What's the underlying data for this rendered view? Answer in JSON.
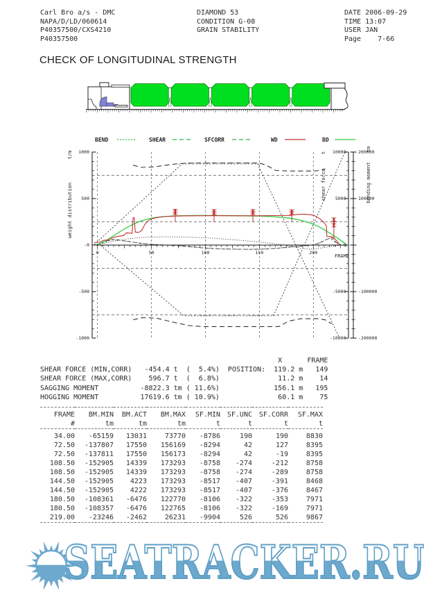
{
  "header": {
    "left": [
      "Carl Bro a/s - DMC",
      "NAPA/D/LD/060614",
      "P40357500/CXS4210",
      "P40357500"
    ],
    "center": [
      "DIAMOND 53",
      "CONDITION G-08",
      "GRAIN STABILITY"
    ],
    "right": [
      "DATE 2006-09-29",
      "TIME 13:07",
      "USER JAN",
      "Page    7-66"
    ]
  },
  "title": "CHECK OF LONGITUDINAL STRENGTH",
  "ship": {
    "hold_count": 5,
    "hold_color": "#00df1f",
    "hold_stroke": "#127a12",
    "hull_stroke": "#222222",
    "accent_color": "#7d84d6"
  },
  "chart": {
    "legend": [
      {
        "label": "BEND",
        "color": "#2eb84d",
        "dash": "2,2"
      },
      {
        "label": "SHEAR",
        "color": "#2eb84d",
        "dash": "6,4"
      },
      {
        "label": "SFCORR",
        "color": "#2eb84d",
        "dash": "6,4"
      },
      {
        "label": "WD",
        "color": "#c03030",
        "dash": ""
      },
      {
        "label": "BD",
        "color": "#2ecc40",
        "dash": ""
      }
    ],
    "left_axis": {
      "unit": "t/m",
      "title": "weight distribution",
      "ticks": [
        "1000",
        "500",
        "-0",
        "-500",
        "-1000"
      ]
    },
    "x_axis": {
      "title": "FRAME",
      "ticks": [
        "0",
        "50",
        "100",
        "150",
        "200"
      ]
    },
    "shear_axis": {
      "unit": "t",
      "title": "shear force",
      "ticks": [
        "10000",
        "5000",
        "-0",
        "-5000",
        "-10000"
      ]
    },
    "bending_axis": {
      "unit": "tm",
      "title": "bending moment",
      "ticks": [
        "200000",
        "100000",
        "-100000",
        "-200000"
      ]
    }
  },
  "chart_data": {
    "type": "line",
    "x_label": "FRAME",
    "x_range": [
      -5,
      232
    ],
    "left_scale": {
      "label": "weight distribution t/m",
      "range": [
        -1000,
        1000
      ]
    },
    "shear_scale": {
      "label": "shear force t",
      "range": [
        -10000,
        10000
      ]
    },
    "bending_scale": {
      "label": "bending moment tm",
      "range": [
        -200000,
        200000
      ]
    },
    "series": [
      {
        "name": "SF-LIMIT-UPPER",
        "color": "#333333",
        "width": 0.9,
        "dash": "2,2.4",
        "points": [
          [
            -3,
            5
          ],
          [
            79,
            880
          ],
          [
            148,
            880
          ],
          [
            224,
            -995
          ]
        ]
      },
      {
        "name": "SF-LIMIT-LOWER",
        "color": "#333333",
        "width": 0.9,
        "dash": "2,2.4",
        "points": [
          [
            3,
            -5
          ],
          [
            80,
            -760
          ],
          [
            163,
            -760
          ],
          [
            229,
            995
          ]
        ]
      },
      {
        "name": "BM-LIMIT-UPPER",
        "color": "#333333",
        "width": 1.1,
        "dash": "7,4.5",
        "points": [
          [
            33,
            860
          ],
          [
            40,
            836
          ],
          [
            50,
            838
          ],
          [
            62,
            856
          ],
          [
            75,
            876
          ],
          [
            88,
            882
          ],
          [
            150,
            882
          ],
          [
            157,
            856
          ],
          [
            165,
            802
          ],
          [
            178,
            796
          ],
          [
            200,
            796
          ],
          [
            206,
            802
          ],
          [
            211,
            820
          ]
        ]
      },
      {
        "name": "BM-LIMIT-LOWER",
        "color": "#333333",
        "width": 1.1,
        "dash": "7,4.5",
        "points": [
          [
            33,
            -802
          ],
          [
            42,
            -780
          ],
          [
            55,
            -786
          ],
          [
            70,
            -828
          ],
          [
            85,
            -866
          ],
          [
            97,
            -876
          ],
          [
            168,
            -876
          ],
          [
            177,
            -818
          ],
          [
            188,
            -792
          ],
          [
            204,
            -790
          ],
          [
            211,
            -804
          ],
          [
            217,
            -846
          ]
        ]
      },
      {
        "name": "BM-PLATEAU-GRAY-UPPER",
        "color": "#aaaaaa",
        "width": 1.5,
        "dash": "2,3",
        "points": [
          [
            75,
            870
          ],
          [
            150,
            870
          ]
        ]
      },
      {
        "name": "BM-PLATEAU-GRAY-LOWER",
        "color": "#aaaaaa",
        "width": 1.5,
        "dash": "2,3",
        "points": [
          [
            93,
            -758
          ],
          [
            168,
            -758
          ]
        ]
      },
      {
        "name": "BEND",
        "color": "#3a3a3a",
        "width": 0.9,
        "dash": "1.2,2",
        "points": [
          [
            -2,
            0
          ],
          [
            8,
            24
          ],
          [
            18,
            48
          ],
          [
            28,
            67
          ],
          [
            38,
            79
          ],
          [
            48,
            86
          ],
          [
            60,
            89
          ],
          [
            75,
            88
          ],
          [
            90,
            83
          ],
          [
            105,
            75
          ],
          [
            120,
            63
          ],
          [
            135,
            49
          ],
          [
            150,
            33
          ],
          [
            162,
            17
          ],
          [
            172,
            2
          ],
          [
            180,
            -14
          ],
          [
            188,
            -32
          ],
          [
            195,
            -43
          ],
          [
            201,
            -41
          ],
          [
            207,
            -32
          ],
          [
            213,
            -20
          ],
          [
            219,
            -9
          ],
          [
            225,
            -2
          ],
          [
            229,
            0
          ]
        ]
      },
      {
        "name": "SHEAR",
        "color": "#333333",
        "width": 0.9,
        "dash": "5,3",
        "points": [
          [
            -2,
            0
          ],
          [
            4,
            26
          ],
          [
            9,
            47
          ],
          [
            14,
            59
          ],
          [
            19,
            56
          ],
          [
            26,
            44
          ],
          [
            33,
            31
          ],
          [
            40,
            19
          ],
          [
            48,
            10
          ],
          [
            56,
            4
          ],
          [
            65,
            0
          ],
          [
            74,
            -6
          ],
          [
            84,
            -16
          ],
          [
            94,
            -27
          ],
          [
            104,
            -36
          ],
          [
            116,
            -42
          ],
          [
            130,
            -45
          ],
          [
            142,
            -46
          ],
          [
            149,
            -45
          ],
          [
            158,
            -41
          ],
          [
            168,
            -33
          ],
          [
            178,
            -22
          ],
          [
            188,
            -11
          ],
          [
            195,
            -4
          ],
          [
            200,
            3
          ],
          [
            204,
            16
          ],
          [
            208,
            36
          ],
          [
            212,
            60
          ],
          [
            215,
            76
          ],
          [
            217,
            80
          ],
          [
            219,
            54
          ],
          [
            221,
            30
          ],
          [
            224,
            8
          ],
          [
            226,
            0
          ]
        ]
      },
      {
        "name": "SFCORR",
        "color": "#555555",
        "width": 0.9,
        "dash": "2.5,2.5",
        "points": [
          [
            -2,
            0
          ],
          [
            5,
            22
          ],
          [
            10,
            44
          ],
          [
            14,
            57
          ],
          [
            20,
            52
          ],
          [
            28,
            38
          ],
          [
            36,
            26
          ],
          [
            44,
            14
          ],
          [
            52,
            7
          ],
          [
            62,
            1
          ],
          [
            72,
            -4
          ],
          [
            82,
            -13
          ],
          [
            92,
            -24
          ],
          [
            102,
            -33
          ],
          [
            114,
            -40
          ],
          [
            128,
            -44
          ],
          [
            142,
            -44
          ],
          [
            152,
            -43
          ],
          [
            162,
            -38
          ],
          [
            172,
            -28
          ],
          [
            182,
            -17
          ],
          [
            192,
            -7
          ],
          [
            198,
            0
          ],
          [
            203,
            12
          ],
          [
            207,
            30
          ],
          [
            211,
            52
          ],
          [
            214,
            68
          ],
          [
            216,
            74
          ],
          [
            218,
            50
          ],
          [
            221,
            26
          ],
          [
            224,
            6
          ],
          [
            226,
            0
          ]
        ]
      },
      {
        "name": "BD",
        "color": "#2ecc40",
        "width": 1.3,
        "dash": "",
        "points": [
          [
            -1,
            0
          ],
          [
            8,
            48
          ],
          [
            16,
            108
          ],
          [
            24,
            168
          ],
          [
            32,
            218
          ],
          [
            40,
            258
          ],
          [
            48,
            284
          ],
          [
            56,
            300
          ],
          [
            64,
            309
          ],
          [
            75,
            315
          ],
          [
            90,
            318
          ],
          [
            110,
            318
          ],
          [
            130,
            316
          ],
          [
            150,
            312
          ],
          [
            162,
            306
          ],
          [
            172,
            297
          ],
          [
            180,
            286
          ],
          [
            188,
            268
          ],
          [
            196,
            242
          ],
          [
            204,
            204
          ],
          [
            212,
            152
          ],
          [
            218,
            108
          ],
          [
            224,
            62
          ],
          [
            228,
            28
          ],
          [
            231,
            0
          ]
        ]
      },
      {
        "name": "WD",
        "color": "#c03030",
        "width": 1.1,
        "dash": "",
        "points": [
          [
            -3,
            28
          ],
          [
            2,
            30
          ],
          [
            6,
            52
          ],
          [
            10,
            55
          ],
          [
            14,
            78
          ],
          [
            18,
            92
          ],
          [
            24,
            102
          ],
          [
            27,
            133
          ],
          [
            30,
            128
          ],
          [
            32,
            126
          ],
          [
            33,
            292
          ],
          [
            34,
            296
          ],
          [
            35,
            140
          ],
          [
            38,
            136
          ],
          [
            41,
            158
          ],
          [
            44,
            225
          ],
          [
            47,
            262
          ],
          [
            51,
            285
          ],
          [
            56,
            298
          ],
          [
            62,
            306
          ],
          [
            70,
            311
          ],
          [
            80,
            314
          ],
          [
            90,
            315
          ],
          [
            105,
            316
          ],
          [
            120,
            316
          ],
          [
            135,
            315
          ],
          [
            150,
            315
          ],
          [
            165,
            317
          ],
          [
            178,
            319
          ],
          [
            185,
            330
          ],
          [
            192,
            331
          ],
          [
            197,
            327
          ],
          [
            200,
            322
          ],
          [
            203,
            305
          ],
          [
            206,
            282
          ],
          [
            209,
            252
          ],
          [
            211,
            225
          ],
          [
            212,
            208
          ],
          [
            212.5,
            95
          ],
          [
            215,
            92
          ],
          [
            217,
            88
          ],
          [
            218.5,
            86
          ],
          [
            222,
            40
          ],
          [
            224,
            10
          ],
          [
            225,
            0
          ]
        ]
      }
    ],
    "spikes": [
      {
        "frame": 72,
        "top": 385,
        "bottom": 252
      },
      {
        "frame": 108,
        "top": 382,
        "bottom": 250
      },
      {
        "frame": 144,
        "top": 382,
        "bottom": 252
      },
      {
        "frame": 180,
        "top": 380,
        "bottom": 255
      },
      {
        "frame": 219,
        "top": 292,
        "bottom": 62
      }
    ],
    "grid": {
      "vertical_frames": [
        0,
        50,
        100,
        150,
        200
      ],
      "horizontal_values": [
        750,
        250,
        -250,
        -750
      ]
    }
  },
  "summary": {
    "lines": [
      "                                                         X      FRAME",
      "SHEAR FORCE (MIN,CORR)   -454.4 t  (  5.4%)  POSITION:  119.2 m   149",
      "SHEAR FORCE (MAX,CORR)    596.7 t  (  6.8%)              11.2 m    14",
      "SAGGING MOMENT          -8822.3 tm ( 11.6%)             156.1 m   195",
      "HOGGING MOMENT          17619.6 tm ( 10.9%)              60.1 m    75"
    ]
  },
  "table": {
    "headers": [
      "FRAME",
      "BM.MIN",
      "BM.ACT",
      "BM.MAX",
      "SF.MIN",
      "SF.UNC",
      "SF.CORR",
      "SF.MAX"
    ],
    "units": [
      "#",
      "tm",
      "tm",
      "tm",
      "t",
      "t",
      "t",
      "t"
    ],
    "rows": [
      [
        "34.00",
        "-65159",
        "13031",
        "73770",
        "-8786",
        "190",
        "190",
        "8830"
      ],
      [
        "72.50",
        "-137807",
        "17550",
        "156169",
        "-8294",
        "42",
        "127",
        "8395"
      ],
      [
        "72.50",
        "-137811",
        "17550",
        "156173",
        "-8294",
        "42",
        "-19",
        "8395"
      ],
      [
        "108.50",
        "-152905",
        "14339",
        "173293",
        "-8758",
        "-274",
        "-212",
        "8758"
      ],
      [
        "108.50",
        "-152905",
        "14339",
        "173293",
        "-8758",
        "-274",
        "-289",
        "8758"
      ],
      [
        "144.50",
        "-152905",
        "4223",
        "173293",
        "-8517",
        "-407",
        "-391",
        "8468"
      ],
      [
        "144.50",
        "-152905",
        "4222",
        "173293",
        "-8517",
        "-407",
        "-376",
        "8467"
      ],
      [
        "180.50",
        "-108361",
        "-6476",
        "122770",
        "-8106",
        "-322",
        "-353",
        "7971"
      ],
      [
        "180.50",
        "-108357",
        "-6476",
        "122765",
        "-8106",
        "-322",
        "-169",
        "7971"
      ],
      [
        "219.00",
        "-23246",
        "-2462",
        "26231",
        "-9904",
        "526",
        "526",
        "9867"
      ]
    ]
  },
  "watermark": {
    "text": "SEATRACKER.RU",
    "fill_color": "#6da8cd",
    "stroke_color": "#5f9fc6"
  }
}
